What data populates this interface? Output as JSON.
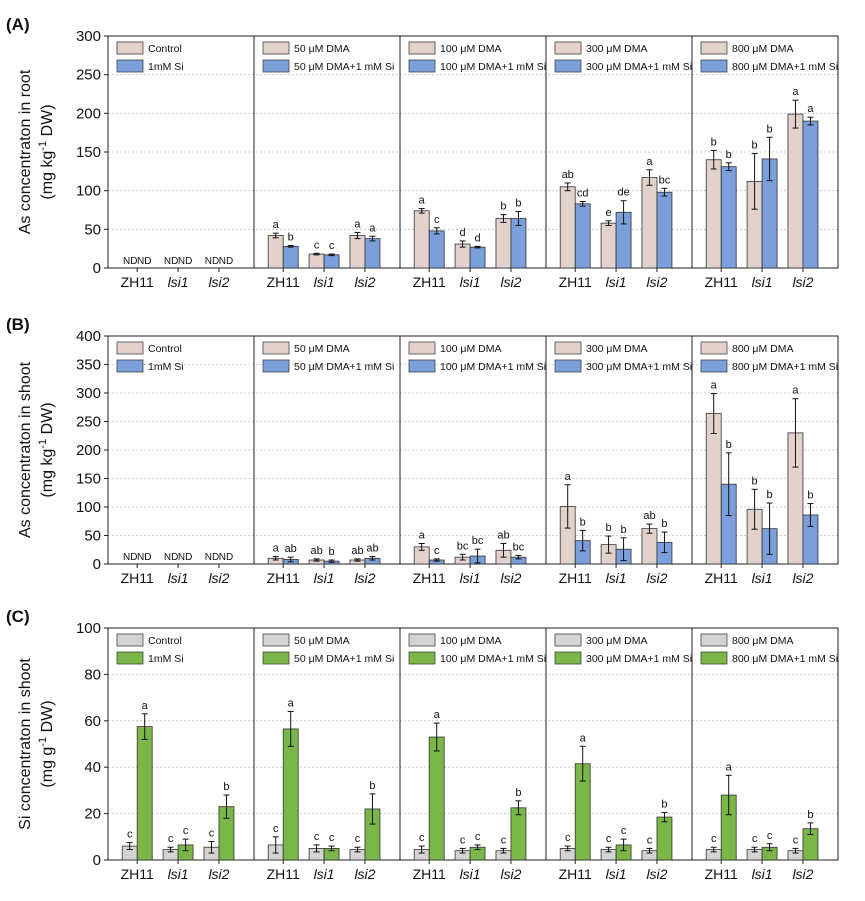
{
  "colors": {
    "root_control": "#e3d1cc",
    "root_si": "#7a9fdb",
    "si_control": "#d4d4d4",
    "si_si": "#7ab648",
    "bar_stroke": "#333333"
  },
  "chart_data": [
    {
      "type": "bar",
      "panel_label": "(A)",
      "ylabel_line1": "As concentraton in root",
      "ylabel_pre": "(mg kg",
      "ylabel_sup": "-1",
      "ylabel_post": " DW)",
      "ylim": [
        0,
        300
      ],
      "yticks": [
        0,
        50,
        100,
        150,
        200,
        250,
        300
      ],
      "grid": true,
      "palette": "root",
      "categories": [
        "ZH11",
        "lsi1",
        "lsi2"
      ],
      "nd_label": "ND",
      "groups": [
        {
          "legend": [
            "Control",
            "1mM Si"
          ],
          "nd": true,
          "control": [
            null,
            null,
            null
          ],
          "control_err": [
            0,
            0,
            0
          ],
          "control_letters": [
            "",
            "",
            ""
          ],
          "si": [
            null,
            null,
            null
          ],
          "si_err": [
            0,
            0,
            0
          ],
          "si_letters": [
            "",
            "",
            ""
          ]
        },
        {
          "legend": [
            "50 μM DMA",
            "50 μM DMA+1 mM Si"
          ],
          "control": [
            42,
            18,
            42
          ],
          "control_err": [
            3,
            1,
            4
          ],
          "control_letters": [
            "a",
            "c",
            "a"
          ],
          "si": [
            28,
            17,
            38
          ],
          "si_err": [
            1,
            1,
            3
          ],
          "si_letters": [
            "b",
            "c",
            "a"
          ]
        },
        {
          "legend": [
            "100 μM DMA",
            "100 μM DMA+1 mM Si"
          ],
          "control": [
            74,
            31,
            64
          ],
          "control_err": [
            3,
            4,
            5
          ],
          "control_letters": [
            "a",
            "d",
            "b"
          ],
          "si": [
            48,
            27,
            64
          ],
          "si_err": [
            4,
            1,
            9
          ],
          "si_letters": [
            "c",
            "d",
            "b"
          ]
        },
        {
          "legend": [
            "300 μM DMA",
            "300 μM DMA+1 mM Si"
          ],
          "control": [
            105,
            58,
            117
          ],
          "control_err": [
            5,
            3,
            10
          ],
          "control_letters": [
            "ab",
            "e",
            "a"
          ],
          "si": [
            83,
            72,
            98
          ],
          "si_err": [
            3,
            15,
            5
          ],
          "si_letters": [
            "cd",
            "de",
            "bc"
          ]
        },
        {
          "legend": [
            "800 μM DMA",
            "800 μM DMA+1 mM Si"
          ],
          "control": [
            140,
            112,
            199
          ],
          "control_err": [
            12,
            36,
            18
          ],
          "control_letters": [
            "b",
            "b",
            "a"
          ],
          "si": [
            131,
            141,
            190
          ],
          "si_err": [
            5,
            28,
            5
          ],
          "si_letters": [
            "b",
            "b",
            "a"
          ]
        }
      ]
    },
    {
      "type": "bar",
      "panel_label": "(B)",
      "ylabel_line1": "As concentraton in shoot",
      "ylabel_pre": "(mg kg",
      "ylabel_sup": "-1",
      "ylabel_post": " DW)",
      "ylim": [
        0,
        400
      ],
      "yticks": [
        0,
        50,
        100,
        150,
        200,
        250,
        300,
        350,
        400
      ],
      "grid": true,
      "palette": "root",
      "categories": [
        "ZH11",
        "lsi1",
        "lsi2"
      ],
      "nd_label": "ND",
      "groups": [
        {
          "legend": [
            "Control",
            "1mM Si"
          ],
          "nd": true,
          "control": [
            null,
            null,
            null
          ],
          "control_err": [
            0,
            0,
            0
          ],
          "control_letters": [
            "",
            "",
            ""
          ],
          "si": [
            null,
            null,
            null
          ],
          "si_err": [
            0,
            0,
            0
          ],
          "si_letters": [
            "",
            "",
            ""
          ]
        },
        {
          "legend": [
            "50 μM DMA",
            "50 μM DMA+1 mM Si"
          ],
          "control": [
            10,
            7,
            7
          ],
          "control_err": [
            3,
            2,
            2
          ],
          "control_letters": [
            "a",
            "ab",
            "ab"
          ],
          "si": [
            8,
            5,
            10
          ],
          "si_err": [
            4,
            2,
            3
          ],
          "si_letters": [
            "ab",
            "b",
            "ab"
          ]
        },
        {
          "legend": [
            "100 μM DMA",
            "100 μM DMA+1 mM Si"
          ],
          "control": [
            30,
            12,
            24
          ],
          "control_err": [
            6,
            5,
            12
          ],
          "control_letters": [
            "a",
            "bc",
            "ab"
          ],
          "si": [
            7,
            14,
            12
          ],
          "si_err": [
            2,
            12,
            3
          ],
          "si_letters": [
            "c",
            "bc",
            "bc"
          ]
        },
        {
          "legend": [
            "300 μM DMA",
            "300 μM DMA+1 mM Si"
          ],
          "control": [
            101,
            34,
            62
          ],
          "control_err": [
            38,
            15,
            8
          ],
          "control_letters": [
            "a",
            "b",
            "ab"
          ],
          "si": [
            41,
            26,
            38
          ],
          "si_err": [
            18,
            20,
            18
          ],
          "si_letters": [
            "b",
            "b",
            "b"
          ]
        },
        {
          "legend": [
            "800 μM DMA",
            "800 μM DMA+1 mM Si"
          ],
          "control": [
            264,
            96,
            230
          ],
          "control_err": [
            35,
            35,
            60
          ],
          "control_letters": [
            "a",
            "b",
            "a"
          ],
          "si": [
            140,
            62,
            86
          ],
          "si_err": [
            55,
            45,
            20
          ],
          "si_letters": [
            "b",
            "b",
            "b"
          ]
        }
      ]
    },
    {
      "type": "bar",
      "panel_label": "(C)",
      "ylabel_line1": "Si concentraton in shoot",
      "ylabel_pre": "(mg g",
      "ylabel_sup": "-1",
      "ylabel_post": " DW)",
      "ylim": [
        0,
        100
      ],
      "yticks": [
        0,
        20,
        40,
        60,
        80,
        100
      ],
      "grid": true,
      "palette": "si",
      "categories": [
        "ZH11",
        "lsi1",
        "lsi2"
      ],
      "nd_label": "ND",
      "groups": [
        {
          "legend": [
            "Control",
            "1mM Si"
          ],
          "control": [
            6,
            4.5,
            5.5
          ],
          "control_err": [
            1.5,
            1,
            2.5
          ],
          "control_letters": [
            "c",
            "c",
            "c"
          ],
          "si": [
            57.5,
            6.5,
            23
          ],
          "si_err": [
            5.5,
            2.5,
            5
          ],
          "si_letters": [
            "a",
            "c",
            "b"
          ]
        },
        {
          "legend": [
            "50 μM DMA",
            "50 μM DMA+1 mM Si"
          ],
          "control": [
            6.5,
            5,
            4.5
          ],
          "control_err": [
            3.5,
            1.5,
            1
          ],
          "control_letters": [
            "c",
            "c",
            "c"
          ],
          "si": [
            56.5,
            5,
            22
          ],
          "si_err": [
            7.5,
            1,
            6.5
          ],
          "si_letters": [
            "a",
            "c",
            "b"
          ]
        },
        {
          "legend": [
            "100 μM DMA",
            "100 μM DMA+1 mM Si"
          ],
          "control": [
            4.5,
            4,
            4
          ],
          "control_err": [
            1.5,
            1,
            1
          ],
          "control_letters": [
            "c",
            "c",
            "c"
          ],
          "si": [
            53,
            5.5,
            22.5
          ],
          "si_err": [
            6,
            1,
            3
          ],
          "si_letters": [
            "a",
            "c",
            "b"
          ]
        },
        {
          "legend": [
            "300 μM DMA",
            "300 μM DMA+1 mM Si"
          ],
          "control": [
            5,
            4.5,
            4
          ],
          "control_err": [
            1,
            1,
            1
          ],
          "control_letters": [
            "c",
            "c",
            "c"
          ],
          "si": [
            41.5,
            6.5,
            18.5
          ],
          "si_err": [
            7.5,
            2.5,
            2
          ],
          "si_letters": [
            "a",
            "c",
            "b"
          ]
        },
        {
          "legend": [
            "800 μM DMA",
            "800 μM DMA+1 mM Si"
          ],
          "control": [
            4.5,
            4.5,
            4
          ],
          "control_err": [
            1,
            1,
            1
          ],
          "control_letters": [
            "c",
            "c",
            "c"
          ],
          "si": [
            28,
            5.5,
            13.5
          ],
          "si_err": [
            8.5,
            1.5,
            2.5
          ],
          "si_letters": [
            "a",
            "c",
            "b"
          ]
        }
      ]
    }
  ]
}
